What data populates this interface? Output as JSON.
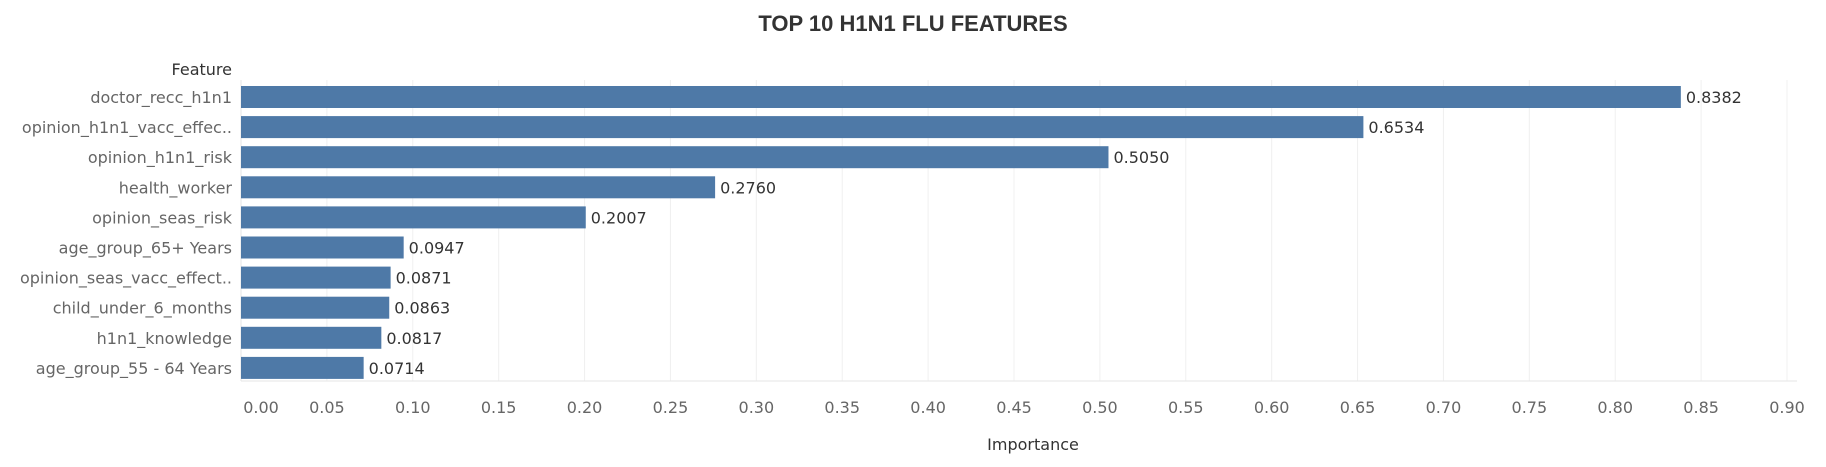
{
  "chart_data": {
    "type": "bar",
    "orientation": "horizontal",
    "title": "TOP 10 H1N1 FLU FEATURES",
    "row_header": "Feature",
    "xlabel": "Importance",
    "categories": [
      "doctor_recc_h1n1",
      "opinion_h1n1_vacc_effec..",
      "opinion_h1n1_risk",
      "health_worker",
      "opinion_seas_risk",
      "age_group_65+ Years",
      "opinion_seas_vacc_effect..",
      "child_under_6_months",
      "h1n1_knowledge",
      "age_group_55 - 64 Years"
    ],
    "values": [
      0.8382,
      0.6534,
      0.505,
      0.276,
      0.2007,
      0.0947,
      0.0871,
      0.0863,
      0.0817,
      0.0714
    ],
    "value_labels": [
      "0.8382",
      "0.6534",
      "0.5050",
      "0.2760",
      "0.2007",
      "0.0947",
      "0.0871",
      "0.0863",
      "0.0817",
      "0.0714"
    ],
    "xlim": [
      0,
      0.9
    ],
    "xticks": [
      "0.00",
      "0.05",
      "0.10",
      "0.15",
      "0.20",
      "0.25",
      "0.30",
      "0.35",
      "0.40",
      "0.45",
      "0.50",
      "0.55",
      "0.60",
      "0.65",
      "0.70",
      "0.75",
      "0.80",
      "0.85",
      "0.90"
    ],
    "grid": true,
    "bar_color": "#4e79a7"
  }
}
